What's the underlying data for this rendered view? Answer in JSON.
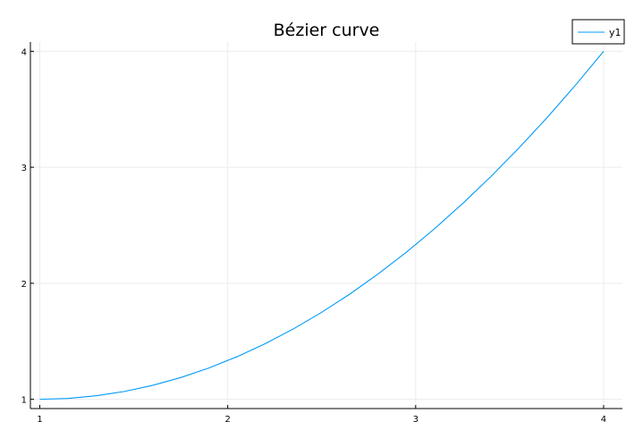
{
  "chart_data": {
    "type": "line",
    "title": "Bézier curve",
    "xlabel": "",
    "ylabel": "",
    "xlim": [
      0.95,
      4.1
    ],
    "ylim": [
      0.92,
      4.08
    ],
    "xticks": [
      1,
      2,
      3,
      4
    ],
    "yticks": [
      1,
      2,
      3,
      4
    ],
    "grid": true,
    "legend_position": "top-right",
    "series": [
      {
        "name": "y1",
        "color": "#009AFA",
        "x": [
          1.0,
          1.15,
          1.3,
          1.45,
          1.6,
          1.75,
          1.9,
          2.05,
          2.2,
          2.35,
          2.5,
          2.65,
          2.8,
          2.95,
          3.1,
          3.25,
          3.4,
          3.55,
          3.7,
          3.85,
          4.0
        ],
        "y": [
          1.0,
          1.0075,
          1.03,
          1.0675,
          1.12,
          1.1875,
          1.27,
          1.3675,
          1.48,
          1.6075,
          1.75,
          1.9075,
          2.08,
          2.2675,
          2.47,
          2.6875,
          2.92,
          3.1675,
          3.43,
          3.7075,
          4.0
        ]
      }
    ]
  }
}
